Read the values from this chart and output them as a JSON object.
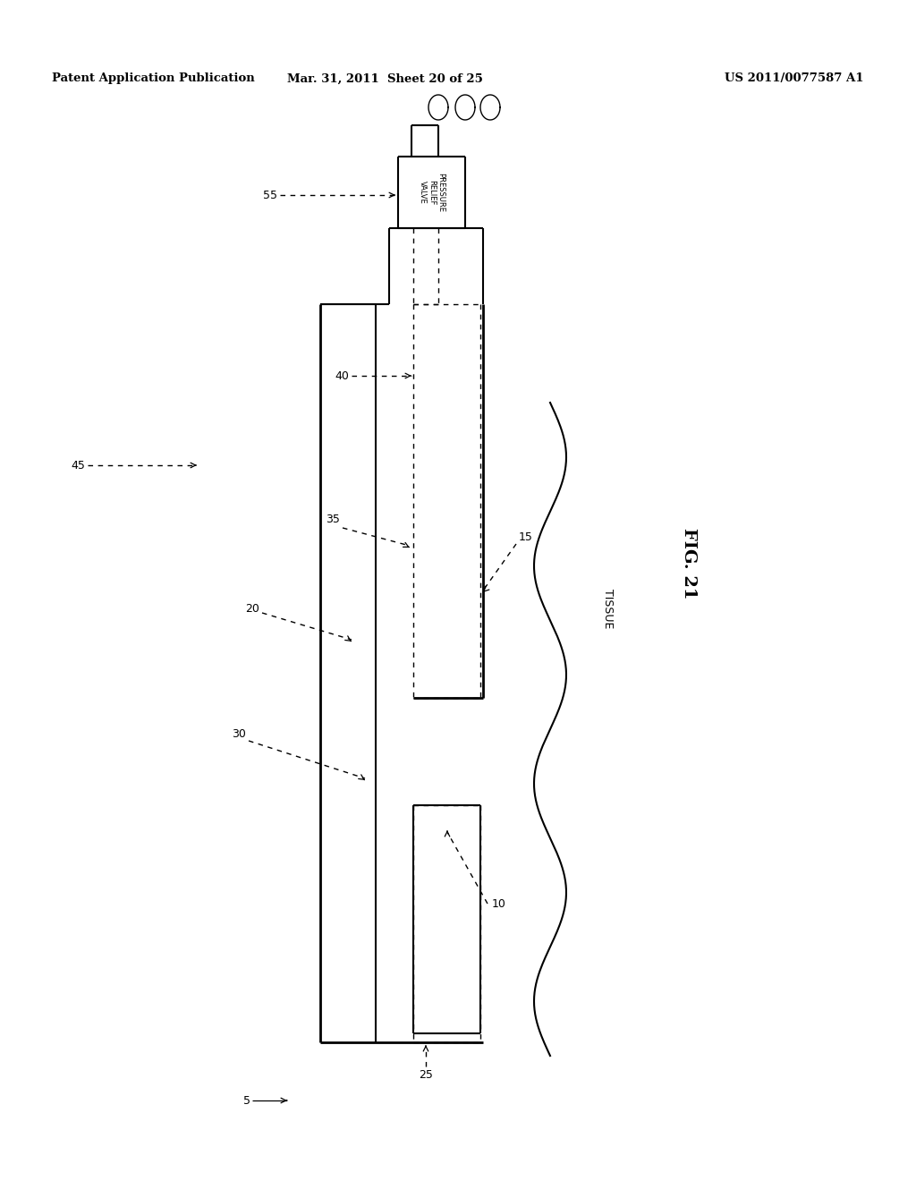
{
  "bg_color": "#ffffff",
  "header_left": "Patent Application Publication",
  "header_mid": "Mar. 31, 2011  Sheet 20 of 25",
  "header_right": "US 2011/0077587 A1",
  "fig_label": "FIG. 21",
  "tissue_label": "TISSUE",
  "pressure_valve_label": "PRESSURE\nRELIEF\nVALVE"
}
